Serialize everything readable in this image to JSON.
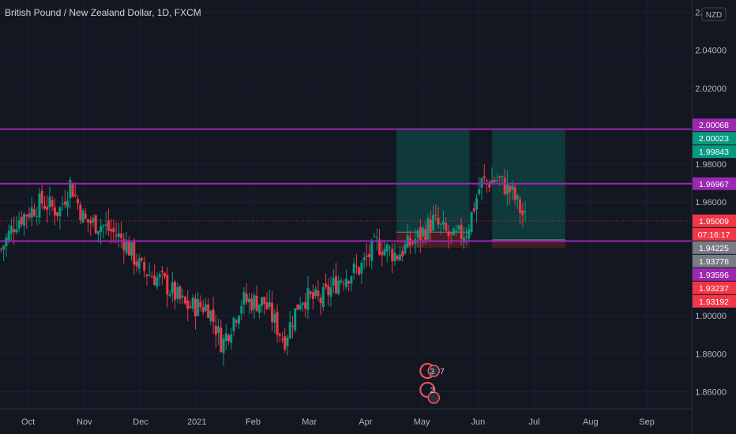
{
  "symbol": {
    "name": "British Pound / New Zealand Dollar",
    "interval": "1D",
    "exchange": "FXCM"
  },
  "price_axis": {
    "currency": "NZD",
    "ticks": [
      "2.06000",
      "2.04000",
      "2.02000",
      "1.98000",
      "1.96000",
      "1.90000",
      "1.88000",
      "1.86000"
    ],
    "tick_values": [
      2.06,
      2.04,
      2.02,
      1.98,
      1.96,
      1.9,
      1.88,
      1.86
    ]
  },
  "time_axis": {
    "labels": [
      "Oct",
      "Nov",
      "Dec",
      "2021",
      "Feb",
      "Mar",
      "Apr",
      "May",
      "Jun",
      "Jul",
      "Aug",
      "Sep"
    ]
  },
  "price_badges": [
    {
      "text": "2.00068",
      "value": 2.00068,
      "bg": "#9c27b0"
    },
    {
      "text": "2.00023",
      "value": 2.00023,
      "bg": "#089981"
    },
    {
      "text": "1.99843",
      "value": 1.99843,
      "bg": "#089981"
    },
    {
      "text": "1.96967",
      "value": 1.96967,
      "bg": "#9c27b0"
    },
    {
      "text": "1.95009",
      "value": 1.95009,
      "bg": "#f23645"
    },
    {
      "text": "07:16:17",
      "value": 1.94617,
      "bg": "#f23645"
    },
    {
      "text": "1.94225",
      "value": 1.94225,
      "bg": "#787b86"
    },
    {
      "text": "1.93776",
      "value": 1.93776,
      "bg": "#787b86"
    },
    {
      "text": "1.93596",
      "value": 1.93596,
      "bg": "#9c27b0"
    },
    {
      "text": "1.93237",
      "value": 1.93237,
      "bg": "#f23645"
    },
    {
      "text": "1.93192",
      "value": 1.93192,
      "bg": "#f23645"
    }
  ],
  "horizontal_lines": [
    1.99843,
    1.96967,
    1.9394
  ],
  "last_price": 1.95009,
  "positions": [
    {
      "from_month": 6.55,
      "to_month": 7.85,
      "entry": 1.9441,
      "target": 1.99843,
      "stop": 1.93592
    },
    {
      "from_month": 8.25,
      "to_month": 9.55,
      "entry": 1.9401,
      "target": 1.99843,
      "stop": 1.93592
    }
  ],
  "event_markers": [
    {
      "label": "3",
      "extra": "7"
    },
    {
      "label": "2",
      "extra": ""
    }
  ],
  "colors": {
    "up": "#089981",
    "down": "#f23645",
    "level_line": "#9c27b0",
    "profit_zone": "#0f3b3c",
    "loss_zone": "#4a1c26",
    "grid": "#1c2030",
    "axis_text": "#b2b5be",
    "background": "#131722"
  },
  "chart_data": {
    "type": "candlestick",
    "title": "British Pound / New Zealand Dollar, 1D, FXCM",
    "ylim": [
      1.851,
      2.0665
    ],
    "x_domain_months": [
      -0.5,
      11.8
    ],
    "anchors": [
      {
        "month": -0.48,
        "close": 1.935
      },
      {
        "month": -0.22,
        "close": 1.95
      },
      {
        "month": 0.25,
        "close": 1.96
      },
      {
        "month": 0.55,
        "close": 1.955
      },
      {
        "month": 0.75,
        "close": 1.97
      },
      {
        "month": 1.0,
        "close": 1.95
      },
      {
        "month": 1.3,
        "close": 1.948
      },
      {
        "month": 1.7,
        "close": 1.94
      },
      {
        "month": 2.0,
        "close": 1.925
      },
      {
        "month": 2.4,
        "close": 1.918
      },
      {
        "month": 2.8,
        "close": 1.905
      },
      {
        "month": 3.2,
        "close": 1.905
      },
      {
        "month": 3.45,
        "close": 1.885
      },
      {
        "month": 3.8,
        "close": 1.908
      },
      {
        "month": 4.2,
        "close": 1.907
      },
      {
        "month": 4.55,
        "close": 1.887
      },
      {
        "month": 4.85,
        "close": 1.91
      },
      {
        "month": 5.2,
        "close": 1.908
      },
      {
        "month": 5.55,
        "close": 1.92
      },
      {
        "month": 5.9,
        "close": 1.925
      },
      {
        "month": 6.2,
        "close": 1.938
      },
      {
        "month": 6.55,
        "close": 1.932
      },
      {
        "month": 6.95,
        "close": 1.942
      },
      {
        "month": 7.2,
        "close": 1.95
      },
      {
        "month": 7.55,
        "close": 1.94
      },
      {
        "month": 7.8,
        "close": 1.945
      },
      {
        "month": 8.05,
        "close": 1.97
      },
      {
        "month": 8.35,
        "close": 1.972
      },
      {
        "month": 8.6,
        "close": 1.965
      },
      {
        "month": 8.85,
        "close": 1.95
      }
    ]
  }
}
